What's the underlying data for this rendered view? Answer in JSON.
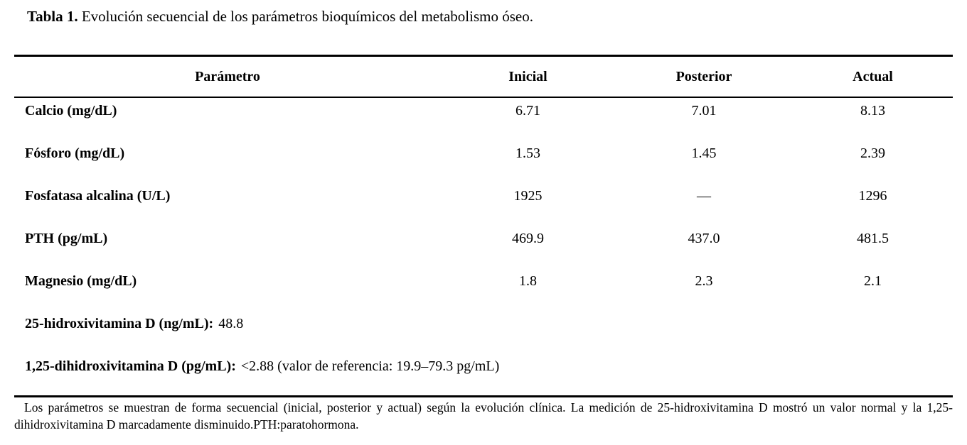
{
  "title": {
    "label": "Tabla 1.",
    "text": "Evolución secuencial de los parámetros bioquímicos del metabolismo óseo."
  },
  "table": {
    "columns": [
      "Parámetro",
      "Inicial",
      "Posterior",
      "Actual"
    ],
    "rows": [
      {
        "parameter": "Calcio (mg/dL)",
        "inicial": "6.71",
        "posterior": "7.01",
        "actual": "8.13"
      },
      {
        "parameter": "Fósforo (mg/dL)",
        "inicial": "1.53",
        "posterior": "1.45",
        "actual": "2.39"
      },
      {
        "parameter": "Fosfatasa alcalina (U/L)",
        "inicial": "1925",
        "posterior": "—",
        "actual": "1296"
      },
      {
        "parameter": "PTH (pg/mL)",
        "inicial": "469.9",
        "posterior": "437.0",
        "actual": "481.5"
      },
      {
        "parameter": "Magnesio (mg/dL)",
        "inicial": "1.8",
        "posterior": "2.3",
        "actual": "2.1"
      }
    ],
    "extra_rows": [
      {
        "label": "25-hidroxivitamina D (ng/mL):",
        "value": "48.8"
      },
      {
        "label": "1,25-dihidroxivitamina D (pg/mL):",
        "value": "<2.88 (valor de referencia: 19.9–79.3 pg/mL)"
      }
    ]
  },
  "footnote": {
    "text": "Los parámetros se muestran de forma secuencial (inicial, posterior y actual) según la evolución clínica. La medición de 25-hidroxivitamina D mostró un valor normal y la 1,25-dihidroxivitamina D marcadamente disminuido.PTH:paratohormona."
  }
}
